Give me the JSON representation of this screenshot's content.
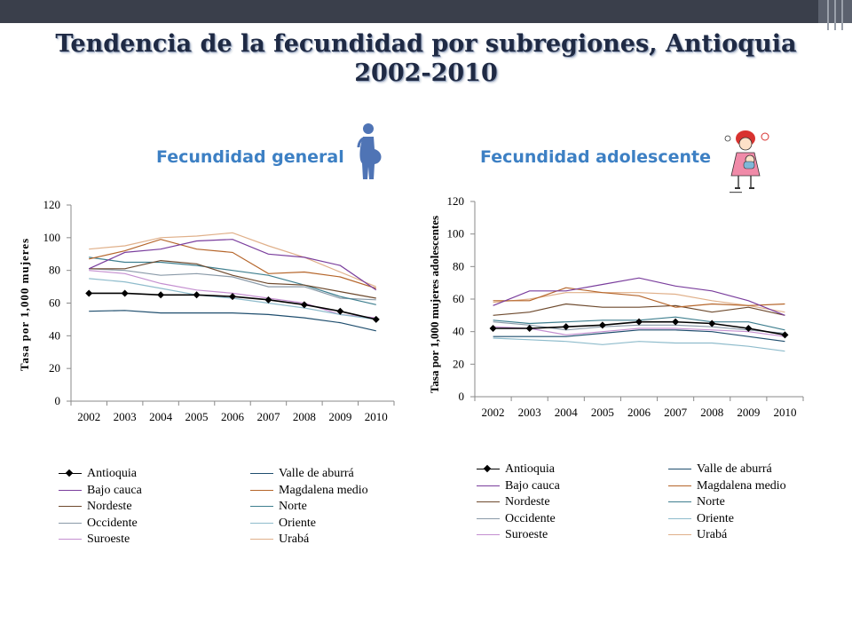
{
  "slide": {
    "title_line1": "Tendencia de la fecundidad por subregiones, Antioquia",
    "title_line2": "2002-2010",
    "subtitle_left": "Fecundidad general",
    "subtitle_right": "Fecundidad adolescente",
    "icon_left": "pregnant-woman-icon",
    "icon_right": "girl-with-baby-icon"
  },
  "chart_data": [
    {
      "type": "line",
      "title": "Fecundidad general",
      "xlabel": "",
      "ylabel": "Tasa por 1,000 mujeres",
      "x": [
        "2002",
        "2003",
        "2004",
        "2005",
        "2006",
        "2007",
        "2008",
        "2009",
        "2010"
      ],
      "ylim": [
        0,
        120
      ],
      "yticks": [
        "0",
        "20",
        "40",
        "60",
        "80",
        "100",
        "120"
      ],
      "grid": false,
      "legend_position": "bottom",
      "series": [
        {
          "name": "Antioquia",
          "color": "#000000",
          "marker": "diamond",
          "values": [
            66,
            66,
            65,
            65,
            64,
            62,
            59,
            55,
            50
          ]
        },
        {
          "name": "Valle de aburrá",
          "color": "#1f4e6e",
          "values": [
            55,
            55.5,
            54,
            54,
            54,
            53,
            51,
            48,
            43
          ]
        },
        {
          "name": "Bajo cauca",
          "color": "#7a3e9d",
          "values": [
            81,
            91,
            93,
            98,
            99,
            90,
            88,
            83,
            68
          ]
        },
        {
          "name": "Magdalena medio",
          "color": "#b5652a",
          "values": [
            87,
            92,
            99,
            93,
            91,
            78,
            79,
            76,
            69
          ]
        },
        {
          "name": "Nordeste",
          "color": "#6e4a2e",
          "values": [
            81,
            81,
            86,
            84,
            77,
            72,
            71,
            67,
            63
          ]
        },
        {
          "name": "Norte",
          "color": "#3f7f8f",
          "values": [
            88,
            85,
            85,
            83,
            80,
            77,
            71,
            64,
            59
          ]
        },
        {
          "name": "Occidente",
          "color": "#8a9aa8",
          "values": [
            81,
            80,
            77,
            78,
            76,
            70,
            70,
            63,
            62
          ]
        },
        {
          "name": "Oriente",
          "color": "#8fbccc",
          "values": [
            75,
            73,
            69,
            65,
            63,
            60,
            57,
            53,
            50
          ]
        },
        {
          "name": "Suroeste",
          "color": "#c48fd0",
          "values": [
            80,
            78,
            72,
            68,
            66,
            63,
            60,
            53,
            51
          ]
        },
        {
          "name": "Urabá",
          "color": "#e0b08a",
          "values": [
            93,
            95,
            100,
            101,
            103,
            95,
            88,
            79,
            70
          ]
        }
      ]
    },
    {
      "type": "line",
      "title": "Fecundidad adolescente",
      "xlabel": "",
      "ylabel": "Tasa por 1,000 mujeres adolescentes",
      "x": [
        "2002",
        "2003",
        "2004",
        "2005",
        "2006",
        "2007",
        "2008",
        "2009",
        "2010"
      ],
      "ylim": [
        0,
        120
      ],
      "yticks": [
        "0",
        "20",
        "40",
        "60",
        "80",
        "100",
        "120"
      ],
      "grid": false,
      "legend_position": "bottom",
      "series": [
        {
          "name": "Antioquia",
          "color": "#000000",
          "marker": "diamond",
          "values": [
            42,
            42,
            43,
            44,
            46,
            46,
            45,
            42,
            38
          ]
        },
        {
          "name": "Valle de aburrá",
          "color": "#1f4e6e",
          "values": [
            37,
            37,
            37,
            39,
            41,
            41,
            40,
            37,
            34
          ]
        },
        {
          "name": "Bajo cauca",
          "color": "#7a3e9d",
          "values": [
            56,
            65,
            65,
            69,
            73,
            68,
            65,
            59,
            50
          ]
        },
        {
          "name": "Magdalena medio",
          "color": "#b5652a",
          "values": [
            59,
            59,
            67,
            64,
            62,
            55,
            57,
            56,
            57
          ]
        },
        {
          "name": "Nordeste",
          "color": "#6e4a2e",
          "values": [
            50,
            52,
            57,
            55,
            55,
            56,
            52,
            55,
            50
          ]
        },
        {
          "name": "Norte",
          "color": "#3f7f8f",
          "values": [
            47,
            45,
            46,
            47,
            47,
            49,
            46,
            46,
            41
          ]
        },
        {
          "name": "Occidente",
          "color": "#8a9aa8",
          "values": [
            46,
            44,
            41,
            43,
            44,
            44,
            43,
            41,
            39
          ]
        },
        {
          "name": "Oriente",
          "color": "#8fbccc",
          "values": [
            36,
            35,
            34,
            32,
            34,
            33,
            33,
            31,
            28
          ]
        },
        {
          "name": "Suroeste",
          "color": "#c48fd0",
          "values": [
            43,
            42,
            38,
            40,
            42,
            42,
            41,
            40,
            37
          ]
        },
        {
          "name": "Urabá",
          "color": "#e0b08a",
          "values": [
            58,
            60,
            64,
            64,
            64,
            63,
            59,
            56,
            52
          ]
        }
      ]
    }
  ]
}
